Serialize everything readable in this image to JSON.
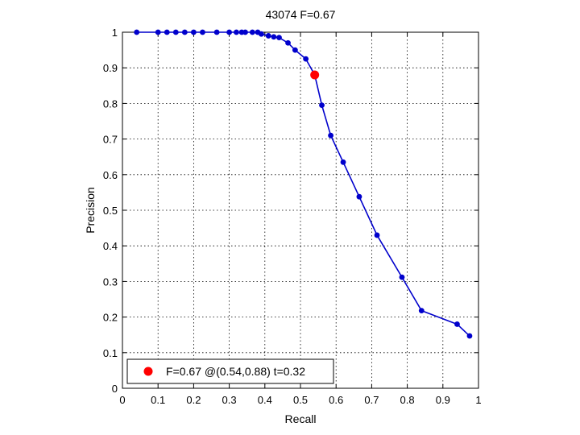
{
  "chart_data": {
    "type": "line",
    "title": "43074 F=0.67",
    "xlabel": "Recall",
    "ylabel": "Precision",
    "xlim": [
      0,
      1
    ],
    "ylim": [
      0,
      1
    ],
    "grid": true,
    "legend_position": "bottom-left",
    "x_ticks": [
      "0",
      "0.1",
      "0.2",
      "0.3",
      "0.4",
      "0.5",
      "0.6",
      "0.7",
      "0.8",
      "0.9",
      "1"
    ],
    "y_ticks": [
      "0",
      "0.1",
      "0.2",
      "0.3",
      "0.4",
      "0.5",
      "0.6",
      "0.7",
      "0.8",
      "0.9",
      "1"
    ],
    "series": [
      {
        "color": "#0000cc",
        "points": [
          [
            0.04,
            1.0
          ],
          [
            0.1,
            1.0
          ],
          [
            0.125,
            1.0
          ],
          [
            0.15,
            1.0
          ],
          [
            0.175,
            1.0
          ],
          [
            0.2,
            1.0
          ],
          [
            0.225,
            1.0
          ],
          [
            0.265,
            1.0
          ],
          [
            0.3,
            1.0
          ],
          [
            0.32,
            1.0
          ],
          [
            0.335,
            1.0
          ],
          [
            0.345,
            1.0
          ],
          [
            0.365,
            1.0
          ],
          [
            0.38,
            1.0
          ],
          [
            0.39,
            0.995
          ],
          [
            0.41,
            0.99
          ],
          [
            0.425,
            0.987
          ],
          [
            0.44,
            0.985
          ],
          [
            0.465,
            0.97
          ],
          [
            0.485,
            0.95
          ],
          [
            0.515,
            0.925
          ],
          [
            0.54,
            0.88
          ],
          [
            0.56,
            0.795
          ],
          [
            0.585,
            0.71
          ],
          [
            0.62,
            0.635
          ],
          [
            0.665,
            0.538
          ],
          [
            0.715,
            0.43
          ],
          [
            0.785,
            0.312
          ],
          [
            0.84,
            0.218
          ],
          [
            0.94,
            0.18
          ],
          [
            0.975,
            0.147
          ]
        ]
      }
    ],
    "highlight": {
      "recall": 0.54,
      "precision": 0.88,
      "color": "#ff0000",
      "legend_label": "F=0.67 @(0.54,0.88) t=0.32"
    }
  }
}
